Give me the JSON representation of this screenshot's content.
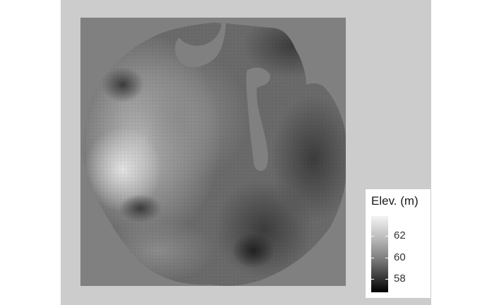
{
  "chart_data": {
    "type": "heatmap",
    "title": "",
    "xlabel": "",
    "ylabel": "",
    "colormap": "grayscale (black = low, white = high)",
    "legend": {
      "title": "Elev. (m)",
      "placement": "bottom-right",
      "range": [
        56.8,
        63.8
      ],
      "ticks": [
        {
          "value": 62,
          "label": "62"
        },
        {
          "value": 60,
          "label": "60"
        },
        {
          "value": 58,
          "label": "58"
        }
      ]
    },
    "colors": {
      "outer_background": "#cccccc",
      "panel_background": "#808080"
    }
  }
}
